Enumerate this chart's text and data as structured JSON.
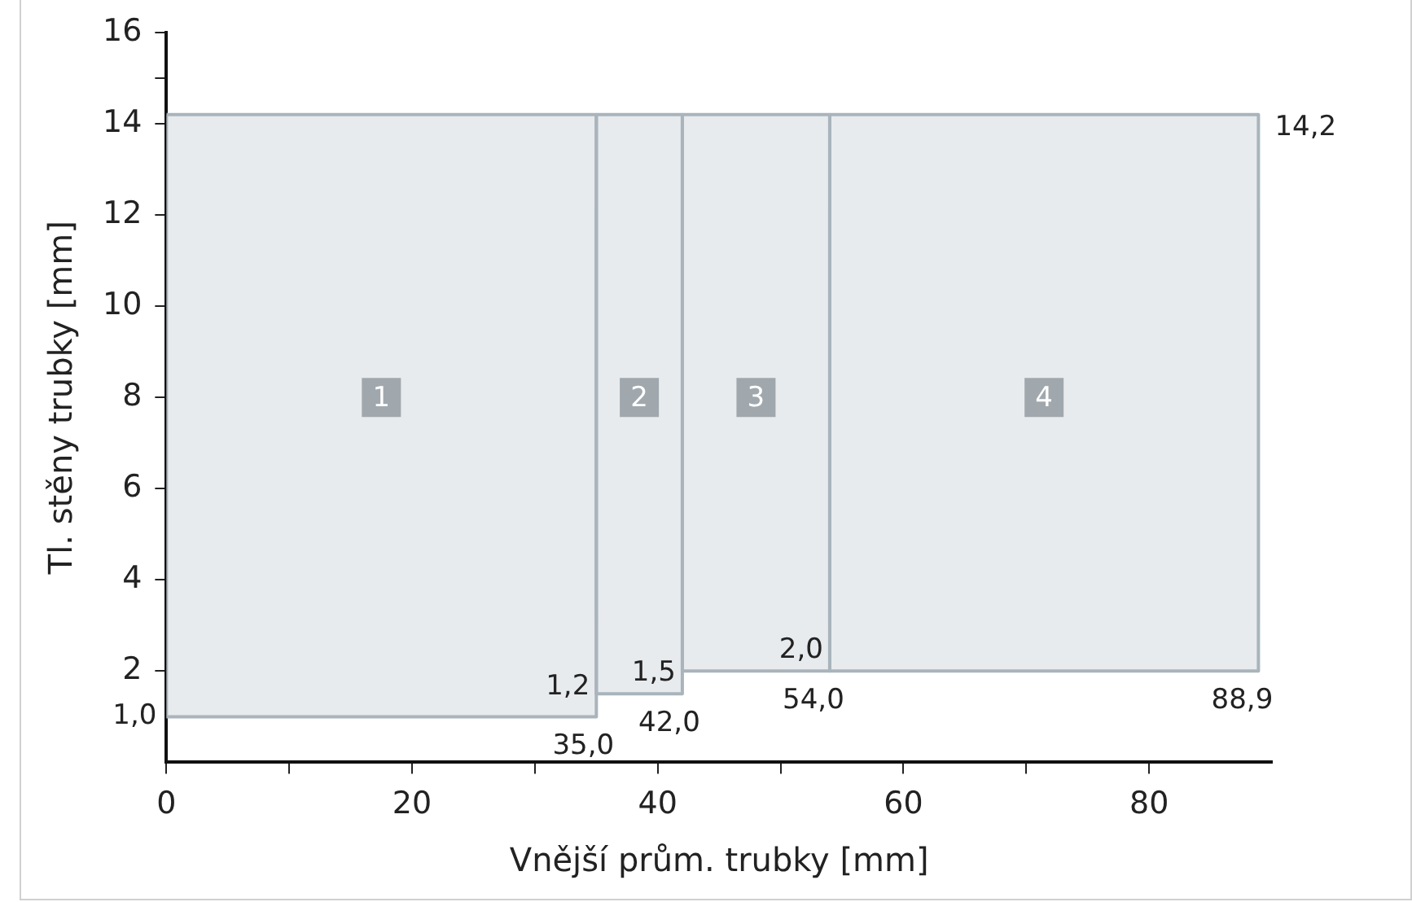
{
  "chart_data": {
    "type": "area",
    "xlabel": "Vnější prům. trubky [mm]",
    "ylabel": "Tl. stěny trubky [mm]",
    "xlim": [
      0,
      90
    ],
    "xticks": [
      0,
      {
        "value": 10,
        "label": null
      },
      20,
      {
        "value": 30,
        "label": null
      },
      40,
      {
        "value": 50,
        "label": null
      },
      60,
      {
        "value": 70,
        "label": null
      },
      80
    ],
    "ylim": [
      0,
      16
    ],
    "yticks": [
      2,
      4,
      6,
      8,
      10,
      12,
      14,
      {
        "value": 15,
        "label": null
      },
      16
    ],
    "grid": false,
    "legend": false,
    "series": [
      {
        "name": "1",
        "color": "#a9b4bc",
        "x": [
          0,
          35,
          35,
          0,
          0
        ],
        "values": [
          14.2,
          14.2,
          1.0,
          1.0,
          14.2
        ]
      },
      {
        "name": "2",
        "color": "#a9b4bc",
        "x": [
          35,
          42,
          42,
          35,
          35
        ],
        "values": [
          14.2,
          14.2,
          1.5,
          1.5,
          14.2
        ]
      },
      {
        "name": "3",
        "color": "#a9b4bc",
        "x": [
          42,
          54,
          54,
          42,
          42
        ],
        "values": [
          14.2,
          14.2,
          2.0,
          2.0,
          14.2
        ]
      },
      {
        "name": "4",
        "color": "#a9b4bc",
        "x": [
          54,
          88.9,
          88.9,
          54,
          54
        ],
        "values": [
          14.2,
          14.2,
          2.0,
          2.0,
          14.2
        ]
      }
    ],
    "annotations": [
      {
        "text": "1,0",
        "x": 0,
        "y": 1.0
      },
      {
        "text": "1,2",
        "x": 35,
        "y": 1.2
      },
      {
        "text": "1,5",
        "x": 42,
        "y": 1.5
      },
      {
        "text": "2,0",
        "x": 54,
        "y": 2.0
      },
      {
        "text": "14,2",
        "x": 88.9,
        "y": 14.2
      },
      {
        "text": "35,0",
        "x": 35,
        "y": 1.0
      },
      {
        "text": "42,0",
        "x": 42,
        "y": 1.5
      },
      {
        "text": "54,0",
        "x": 54,
        "y": 2.0
      },
      {
        "text": "88,9",
        "x": 88.9,
        "y": 2.0
      }
    ]
  }
}
